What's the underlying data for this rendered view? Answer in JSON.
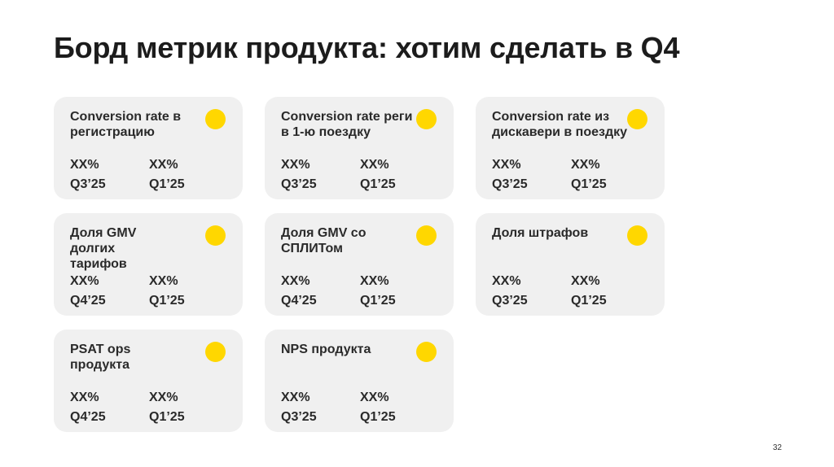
{
  "slide": {
    "title": "Борд метрик продукта: хотим сделать в Q4",
    "page_number": "32",
    "colors": {
      "card_background": "#f0f0f0",
      "status_dot": "#ffd700"
    }
  },
  "cards": [
    {
      "title": "Conversion rate в регистрацию",
      "status_icon": "yellow-circle",
      "metrics": [
        {
          "value": "XX%",
          "period": "Q3’25"
        },
        {
          "value": "XX%",
          "period": "Q1’25"
        }
      ]
    },
    {
      "title": "Conversion rate реги в 1-ю поездку",
      "status_icon": "yellow-circle",
      "metrics": [
        {
          "value": "XX%",
          "period": "Q3’25"
        },
        {
          "value": "XX%",
          "period": "Q1’25"
        }
      ]
    },
    {
      "title": "Conversion rate из дискавери в поездку",
      "status_icon": "yellow-circle",
      "metrics": [
        {
          "value": "XX%",
          "period": "Q3’25"
        },
        {
          "value": "XX%",
          "period": "Q1’25"
        }
      ]
    },
    {
      "title": "Доля GMV долгих тарифов",
      "status_icon": "yellow-circle",
      "metrics": [
        {
          "value": "XX%",
          "period": "Q4’25"
        },
        {
          "value": "XX%",
          "period": "Q1’25"
        }
      ]
    },
    {
      "title": "Доля GMV со СПЛИТом",
      "status_icon": "yellow-circle",
      "metrics": [
        {
          "value": "XX%",
          "period": "Q4’25"
        },
        {
          "value": "XX%",
          "period": "Q1’25"
        }
      ]
    },
    {
      "title": "Доля штрафов",
      "status_icon": "yellow-circle",
      "metrics": [
        {
          "value": "XX%",
          "period": "Q3’25"
        },
        {
          "value": "XX%",
          "period": "Q1’25"
        }
      ]
    },
    {
      "title": "PSAT ops продукта",
      "status_icon": "yellow-circle",
      "metrics": [
        {
          "value": "XX%",
          "period": "Q4’25"
        },
        {
          "value": "XX%",
          "period": "Q1’25"
        }
      ]
    },
    {
      "title": "NPS продукта",
      "status_icon": "yellow-circle",
      "metrics": [
        {
          "value": "XX%",
          "period": "Q3’25"
        },
        {
          "value": "XX%",
          "period": "Q1’25"
        }
      ]
    }
  ]
}
